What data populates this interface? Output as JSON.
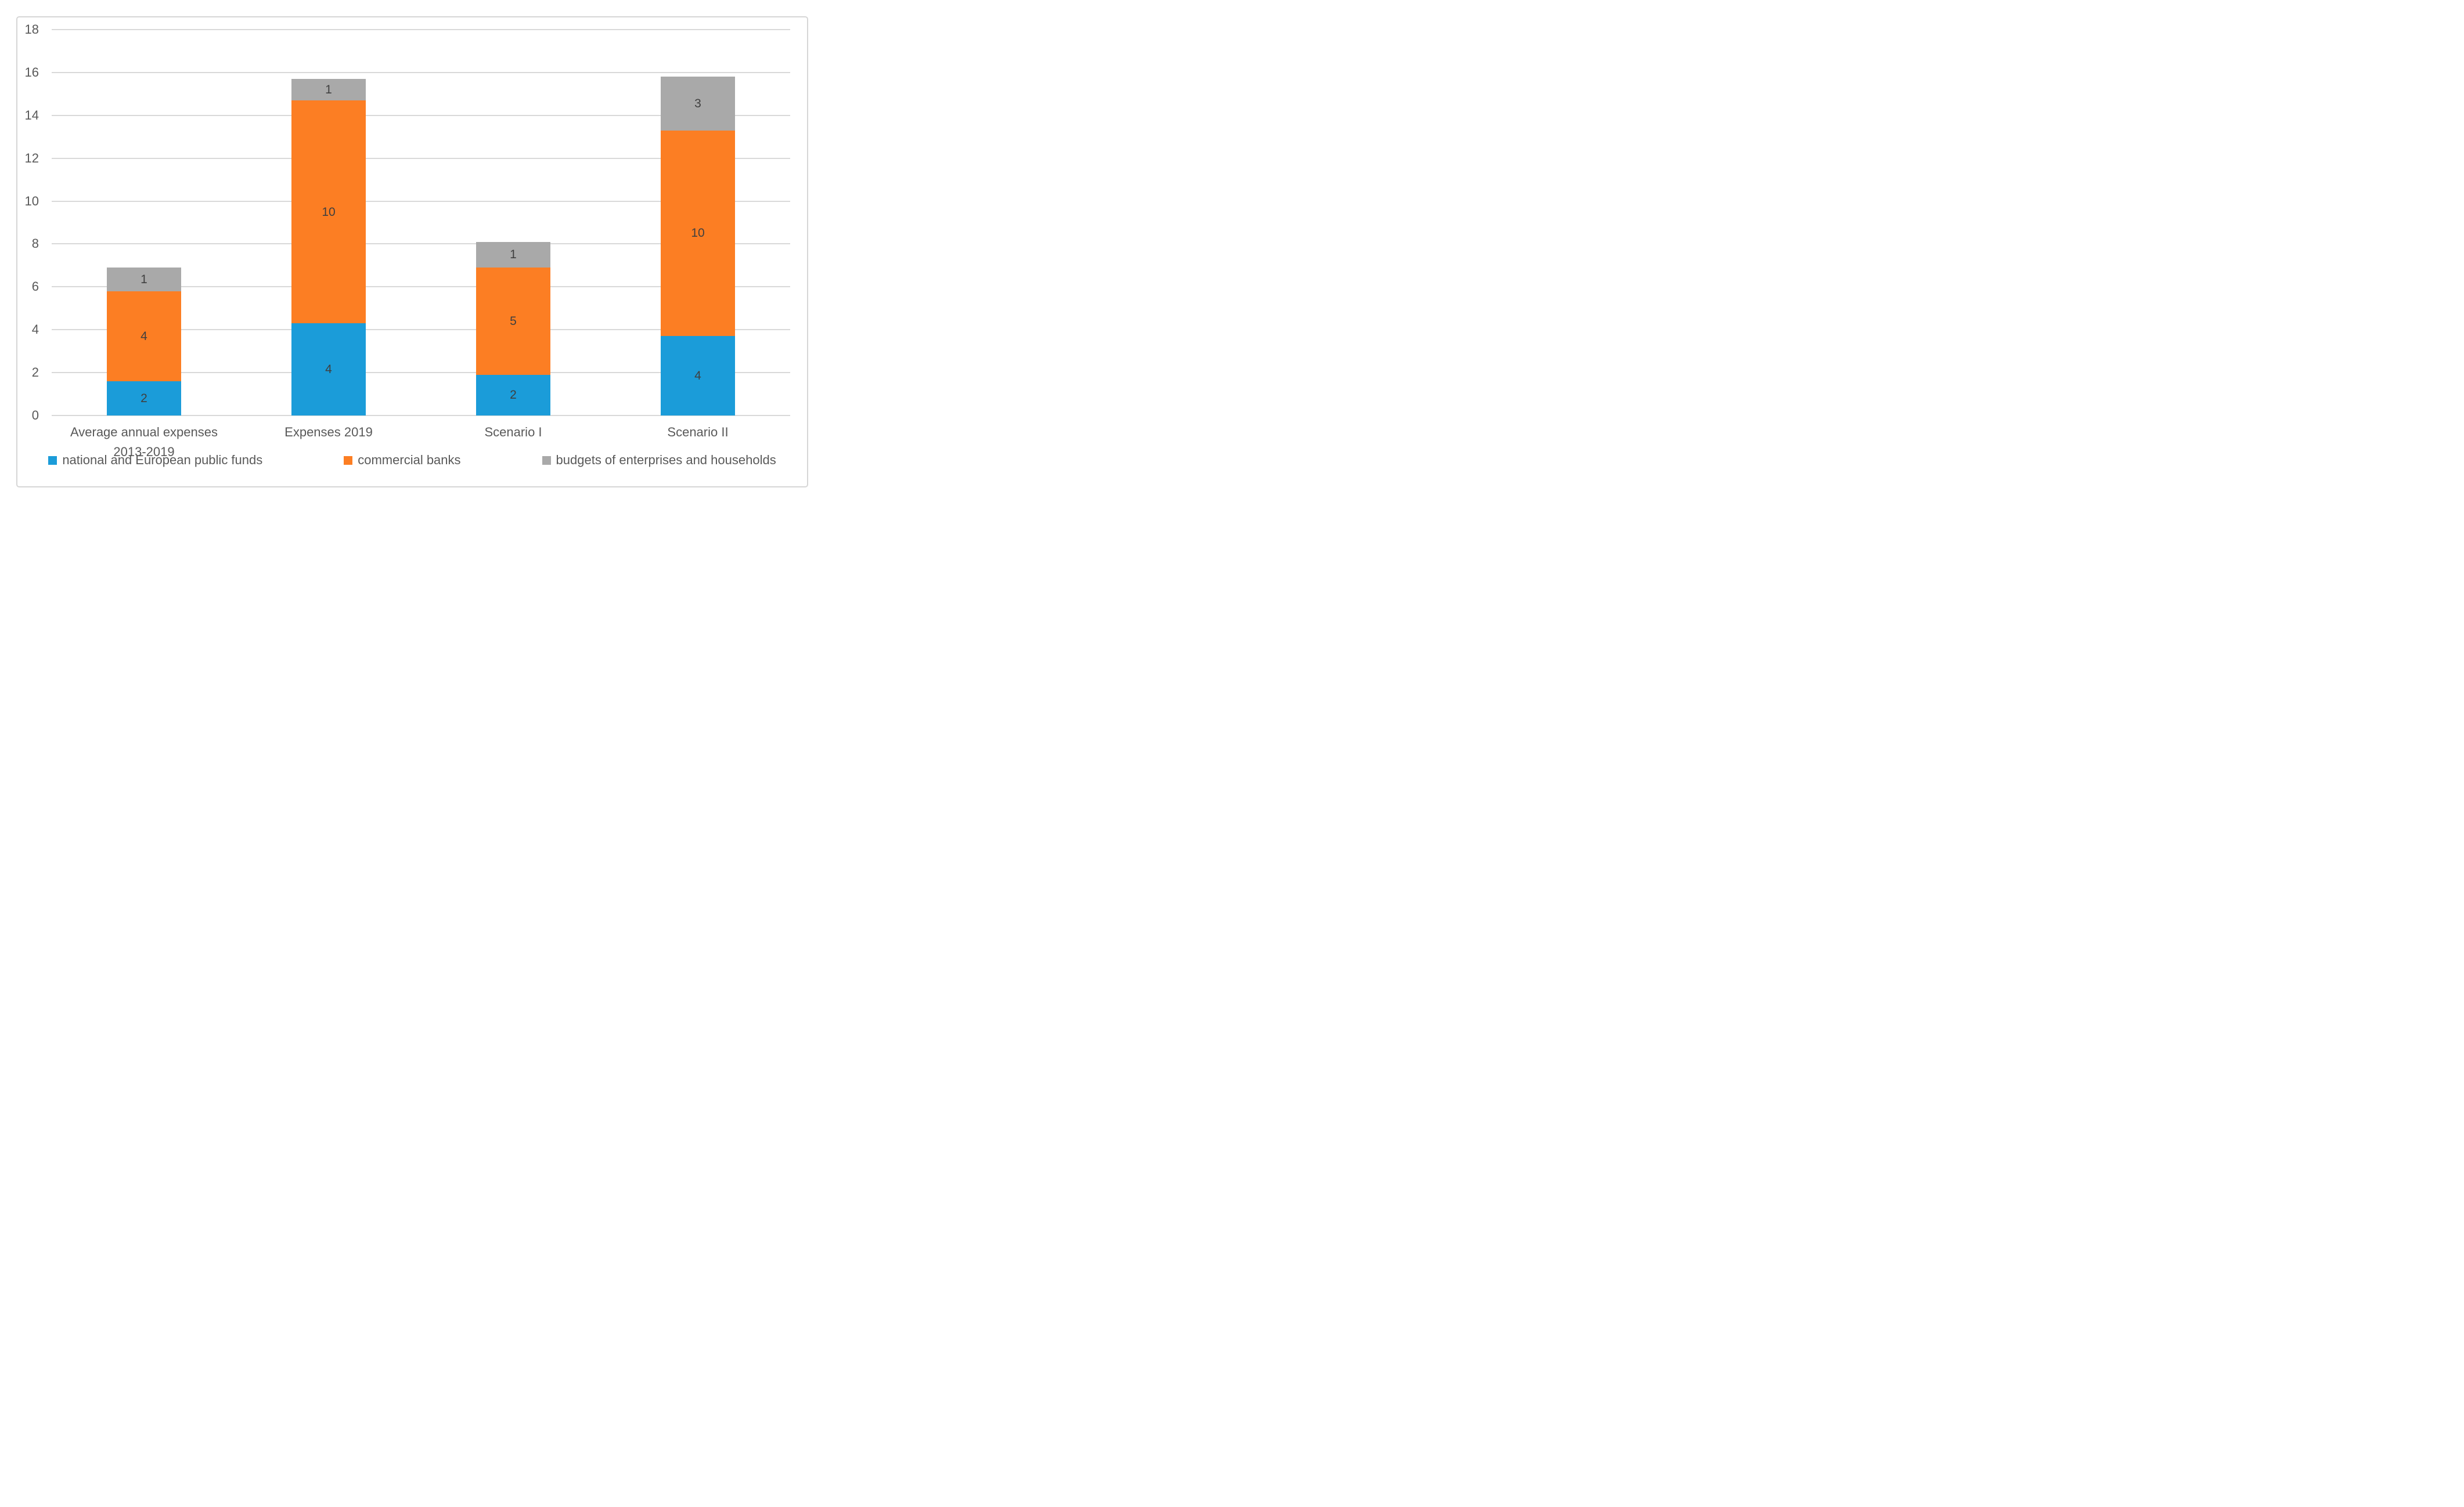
{
  "chart_data": {
    "type": "bar",
    "stacked": true,
    "title": "",
    "xlabel": "",
    "ylabel": "",
    "categories": [
      "Average annual expenses\n2013-2019",
      "Expenses 2019",
      "Scenario I",
      "Scenario II"
    ],
    "series": [
      {
        "name": "national and European public funds",
        "color": "#1b9cd9",
        "values": [
          2,
          4,
          2,
          4
        ],
        "data_labels": [
          "2",
          "4",
          "2",
          "4"
        ],
        "drawn_heights": [
          1.6,
          4.3,
          1.9,
          3.7
        ]
      },
      {
        "name": "commercial banks",
        "color": "#fc7e23",
        "values": [
          4,
          10,
          5,
          10
        ],
        "data_labels": [
          "4",
          "10",
          "5",
          "10"
        ],
        "drawn_heights": [
          4.2,
          10.4,
          5.0,
          9.6
        ]
      },
      {
        "name": "budgets of enterprises and households",
        "color": "#a9a9a9",
        "values": [
          1,
          1,
          1,
          3
        ],
        "data_labels": [
          "1",
          "1",
          "1",
          "3"
        ],
        "drawn_heights": [
          1.1,
          1.0,
          1.2,
          2.5
        ]
      }
    ],
    "y_axis": {
      "min": 0,
      "max": 18,
      "tick_step": 2,
      "ticks": [
        "0",
        "2",
        "4",
        "6",
        "8",
        "10",
        "12",
        "14",
        "16",
        "18"
      ]
    },
    "grid": true,
    "grid_color": "#d9d9d9",
    "frame_border_color": "#d6d6d6",
    "axis_text_color": "#595959",
    "data_label_color": "#3f3f3f",
    "legend_position": "bottom"
  }
}
